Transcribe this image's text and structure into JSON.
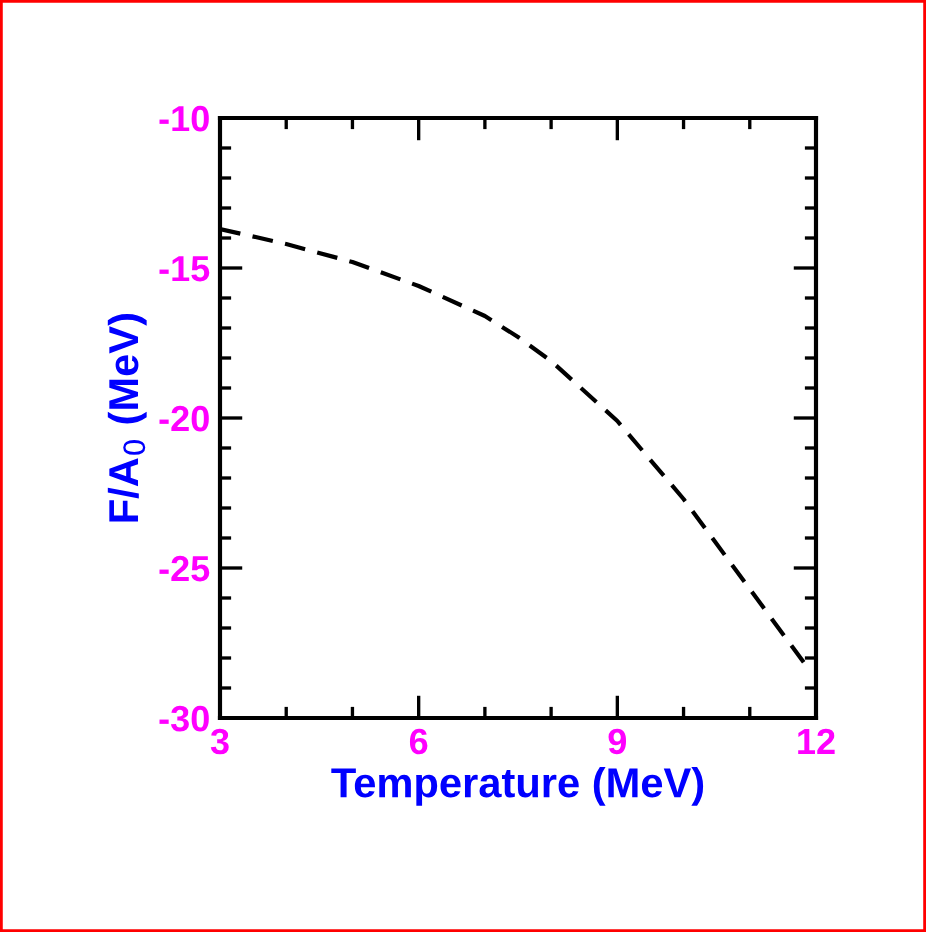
{
  "chart_data": {
    "type": "line",
    "xlabel": "Temperature (MeV)",
    "ylabel": "F/A$_{0}$ (MeV)",
    "x": [
      3,
      4,
      5,
      6,
      7,
      7.5,
      8,
      9,
      10,
      11,
      11.9
    ],
    "series": [
      {
        "color": "#000000",
        "line_style": "dashed",
        "values": [
          -13.7,
          -14.2,
          -14.8,
          -15.6,
          -16.6,
          -17.3,
          -18.1,
          -20.1,
          -22.7,
          -25.7,
          -28.4
        ]
      }
    ],
    "xlim": [
      3,
      12
    ],
    "xticks": [
      3,
      6,
      9,
      12
    ],
    "ylim": [
      -30,
      -10
    ],
    "yticks": [
      -30,
      -25,
      -20,
      -15,
      -10
    ],
    "grid": false,
    "legend": false,
    "marker": "none"
  }
}
